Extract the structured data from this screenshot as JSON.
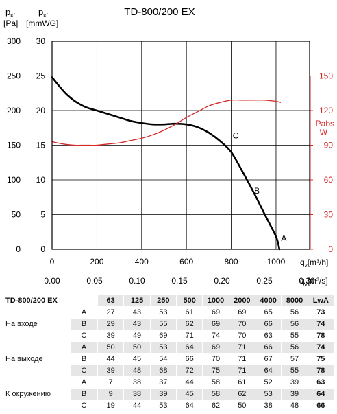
{
  "chart_data": {
    "type": "line",
    "title": "TD-800/200 EX",
    "y_left_outer": {
      "symbol": "p",
      "sub": "sf",
      "unit": "[Pa]",
      "ticks": [
        0,
        50,
        100,
        150,
        200,
        250,
        300
      ],
      "range": [
        0,
        300
      ]
    },
    "y_left_inner": {
      "symbol": "p",
      "sub": "sf",
      "unit": "[mmWG]",
      "ticks": [
        0,
        5,
        10,
        15,
        20,
        25,
        30
      ],
      "range": [
        0,
        30
      ]
    },
    "y_right": {
      "label": "Pabs",
      "unit": "W",
      "ticks": [
        0,
        30,
        60,
        90,
        120,
        150
      ],
      "range": [
        0,
        180
      ]
    },
    "x_top": {
      "symbol": "q",
      "sub": "v",
      "unit": "[m³/h]",
      "ticks": [
        0,
        200,
        400,
        600,
        800,
        1000
      ],
      "range": [
        0,
        1150
      ]
    },
    "x_bottom": {
      "symbol": "q",
      "sub": "v",
      "unit": "[m³/s]",
      "ticks": [
        "0.00",
        "0.05",
        "0.10",
        "0.15",
        "0.20",
        "0.25",
        "0.30"
      ]
    },
    "grid": true,
    "series": [
      {
        "color": "#000000",
        "axis": "pressure_pa",
        "x": [
          0,
          30,
          60,
          100,
          150,
          200,
          300,
          350,
          400,
          450,
          500,
          550,
          600,
          650,
          700,
          750,
          800,
          850,
          900,
          950,
          1000,
          1015
        ],
        "y": [
          248,
          236,
          225,
          214,
          205,
          200,
          190,
          185,
          182,
          180,
          180,
          181,
          180,
          176,
          168,
          156,
          140,
          112,
          82,
          50,
          18,
          0
        ]
      },
      {
        "color": "#d62828",
        "axis": "power_w",
        "x": [
          0,
          50,
          100,
          150,
          200,
          250,
          300,
          350,
          400,
          450,
          500,
          550,
          600,
          650,
          700,
          750,
          800,
          850,
          900,
          950,
          1000,
          1020
        ],
        "y": [
          93,
          91,
          90,
          90,
          90,
          91,
          92,
          94,
          96,
          99,
          103,
          108,
          114,
          119,
          124,
          127,
          129,
          129,
          129,
          129,
          128,
          127
        ]
      }
    ],
    "annotations": [
      {
        "text": "C",
        "x": 820,
        "y": 160
      },
      {
        "text": "B",
        "x": 915,
        "y": 80
      },
      {
        "text": "A",
        "x": 1035,
        "y": 12
      }
    ]
  },
  "table": {
    "model": "TD-800/200 EX",
    "headers": [
      "63",
      "125",
      "250",
      "500",
      "1000",
      "2000",
      "4000",
      "8000",
      "LwA"
    ],
    "groups": [
      {
        "name": "На входе",
        "rows": [
          {
            "label": "A",
            "values": [
              "27",
              "43",
              "53",
              "61",
              "69",
              "69",
              "65",
              "56"
            ],
            "lwa": "73"
          },
          {
            "label": "B",
            "values": [
              "29",
              "43",
              "55",
              "62",
              "69",
              "70",
              "66",
              "56"
            ],
            "lwa": "74"
          },
          {
            "label": "C",
            "values": [
              "39",
              "49",
              "69",
              "71",
              "74",
              "70",
              "63",
              "55"
            ],
            "lwa": "78"
          }
        ]
      },
      {
        "name": "На выходе",
        "rows": [
          {
            "label": "A",
            "values": [
              "50",
              "50",
              "53",
              "64",
              "69",
              "71",
              "66",
              "56"
            ],
            "lwa": "74"
          },
          {
            "label": "B",
            "values": [
              "44",
              "45",
              "54",
              "66",
              "70",
              "71",
              "67",
              "57"
            ],
            "lwa": "75"
          },
          {
            "label": "C",
            "values": [
              "39",
              "48",
              "68",
              "72",
              "75",
              "71",
              "64",
              "55"
            ],
            "lwa": "78"
          }
        ]
      },
      {
        "name": "К окружению",
        "rows": [
          {
            "label": "A",
            "values": [
              "7",
              "38",
              "37",
              "44",
              "58",
              "61",
              "52",
              "39"
            ],
            "lwa": "63"
          },
          {
            "label": "B",
            "values": [
              "9",
              "38",
              "39",
              "45",
              "58",
              "62",
              "53",
              "39"
            ],
            "lwa": "64"
          },
          {
            "label": "C",
            "values": [
              "19",
              "44",
              "53",
              "64",
              "62",
              "50",
              "38",
              "48"
            ],
            "lwa": "66"
          }
        ]
      }
    ]
  }
}
